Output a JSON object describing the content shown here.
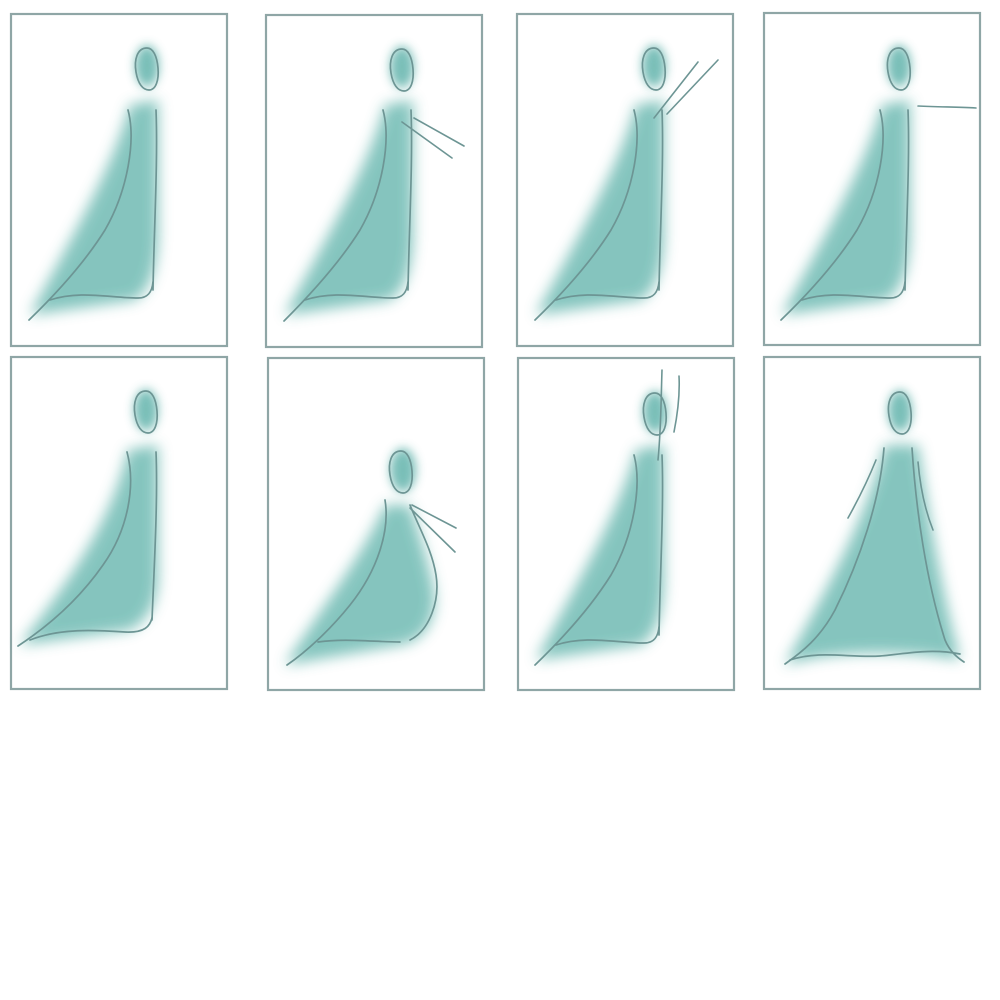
{
  "colors": {
    "frame_stroke": "#8fa6a6",
    "cloak_fill": "#74bdb6",
    "head_fill": "#6cb8b1",
    "line_stroke": "#6d9594",
    "background": "#ffffff"
  },
  "sketch_sheet": {
    "panels": [
      {
        "pose": "standing-cloak",
        "arm": "none"
      },
      {
        "pose": "standing-cloak",
        "arm": "pointing-down-right"
      },
      {
        "pose": "standing-cloak",
        "arm": "raised-diagonal"
      },
      {
        "pose": "standing-cloak",
        "arm": "extended-horizontal"
      },
      {
        "pose": "standing-cloak",
        "arm": "none"
      },
      {
        "pose": "crouching-cloak",
        "arm": "pointing-down-right"
      },
      {
        "pose": "standing-cloak",
        "arm": "raised-vertical"
      },
      {
        "pose": "front-facing-cloak",
        "arm": "both-at-sides"
      }
    ]
  }
}
